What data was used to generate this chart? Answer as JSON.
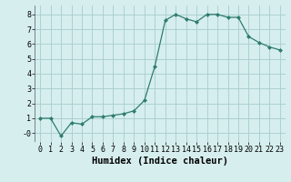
{
  "x": [
    0,
    1,
    2,
    3,
    4,
    5,
    6,
    7,
    8,
    9,
    10,
    11,
    12,
    13,
    14,
    15,
    16,
    17,
    18,
    19,
    20,
    21,
    22,
    23
  ],
  "y": [
    1.0,
    1.0,
    -0.2,
    0.7,
    0.6,
    1.1,
    1.1,
    1.2,
    1.3,
    1.5,
    2.2,
    4.5,
    7.6,
    8.0,
    7.7,
    7.5,
    8.0,
    8.0,
    7.8,
    7.8,
    6.5,
    6.1,
    5.8,
    5.6
  ],
  "xlabel": "Humidex (Indice chaleur)",
  "ylim": [
    -0.6,
    8.6
  ],
  "xlim": [
    -0.5,
    23.5
  ],
  "yticks": [
    0,
    1,
    2,
    3,
    4,
    5,
    6,
    7,
    8
  ],
  "ytick_labels": [
    "-0",
    "1",
    "2",
    "3",
    "4",
    "5",
    "6",
    "7",
    "8"
  ],
  "xticks": [
    0,
    1,
    2,
    3,
    4,
    5,
    6,
    7,
    8,
    9,
    10,
    11,
    12,
    13,
    14,
    15,
    16,
    17,
    18,
    19,
    20,
    21,
    22,
    23
  ],
  "xtick_labels": [
    "0",
    "1",
    "2",
    "3",
    "4",
    "5",
    "6",
    "7",
    "8",
    "9",
    "10",
    "11",
    "12",
    "13",
    "14",
    "15",
    "16",
    "17",
    "18",
    "19",
    "20",
    "21",
    "22",
    "23"
  ],
  "line_color": "#2e7d6e",
  "marker": "D",
  "marker_size": 2.0,
  "line_width": 0.9,
  "bg_color": "#d6eeee",
  "grid_color": "#a8cccc",
  "xlabel_fontsize": 7.5,
  "tick_fontsize": 6.0
}
